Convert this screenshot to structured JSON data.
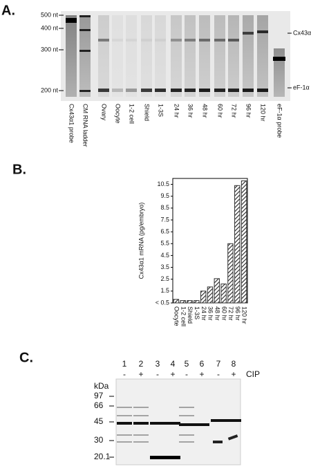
{
  "panel_a": {
    "label": "A.",
    "size_markers": [
      "500 nt",
      "400 nt",
      "300 nt",
      "200 nt"
    ],
    "right_labels": [
      "Cx43α1",
      "eF-1α"
    ],
    "lanes": [
      "Cx43α1 probe",
      "CM RNA ladder",
      "Ovary",
      "Oocyte",
      "1-2 cell",
      "Shield",
      "1-3S",
      "24 hr",
      "36 hr",
      "48 hr",
      "60 hr",
      "72 hr",
      "96 hr",
      "120 hr",
      "eF-1α probe"
    ]
  },
  "chart_data": {
    "type": "bar",
    "label": "B.",
    "y_label": "Cx43α1 mRNA (pg/embryo)",
    "categories": [
      "Oocyte",
      "1-2 cell",
      "Shield",
      "1-3S",
      "24 hr",
      "36 hr",
      "48 hr",
      "60 hr",
      "72 hr",
      "96 hr",
      "120 hr"
    ],
    "values": [
      0.8,
      0.7,
      0.7,
      0.7,
      1.5,
      1.85,
      2.55,
      2.1,
      5.5,
      10.4,
      10.8
    ],
    "ylim": [
      0.5,
      11
    ],
    "yticks": [
      {
        "value": 0.5,
        "label": "< 0.5"
      },
      1.5,
      2.5,
      3.5,
      4.5,
      5.5,
      6.5,
      7.5,
      8.5,
      9.5,
      10.5
    ],
    "color": "#333333"
  },
  "panel_c": {
    "label": "C.",
    "unit": "kDa",
    "lane_numbers": [
      "1",
      "2",
      "3",
      "4",
      "5",
      "6",
      "7",
      "8"
    ],
    "treatment": [
      "-",
      "+",
      "-",
      "+",
      "-",
      "+",
      "-",
      "+"
    ],
    "treatment_label": "CIP",
    "markers": [
      "97",
      "66",
      "45",
      "30",
      "20.1"
    ]
  }
}
